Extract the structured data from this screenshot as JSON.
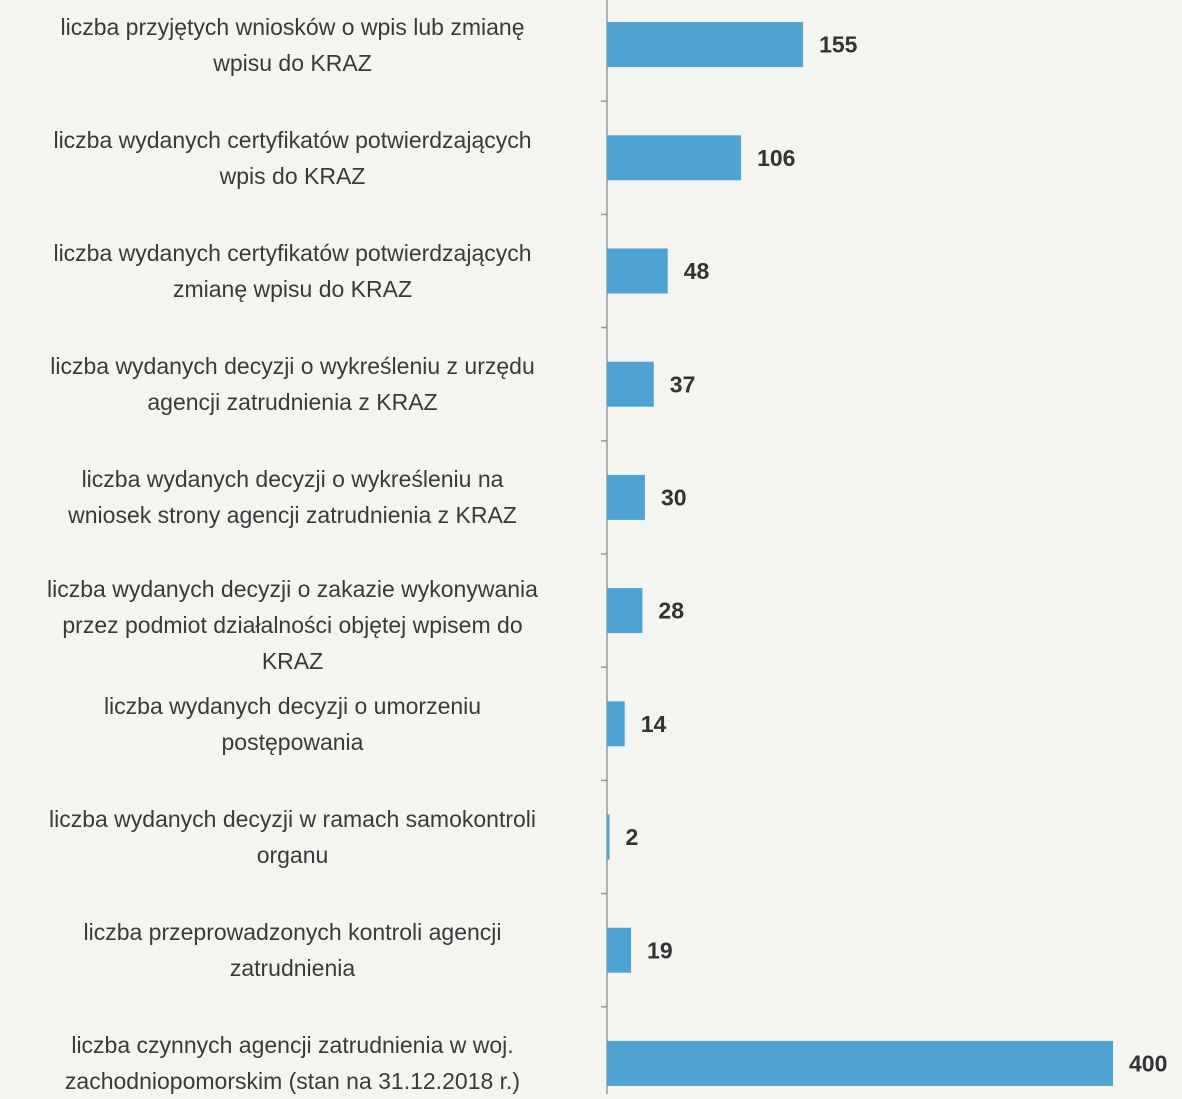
{
  "chart_data": {
    "type": "barh",
    "categories": [
      [
        "liczba przyjętych wniosków o wpis lub zmianę",
        "wpisu do KRAZ"
      ],
      [
        "liczba wydanych certyfikatów potwierdzających",
        "wpis do KRAZ"
      ],
      [
        "liczba wydanych certyfikatów potwierdzających",
        "zmianę wpisu do KRAZ"
      ],
      [
        "liczba wydanych decyzji o wykreśleniu z urzędu",
        "agencji zatrudnienia z KRAZ"
      ],
      [
        "liczba wydanych decyzji o wykreśleniu na",
        "wniosek strony agencji zatrudnienia z KRAZ"
      ],
      [
        "liczba wydanych decyzji o zakazie wykonywania",
        "przez podmiot działalności objętej wpisem do",
        "KRAZ"
      ],
      [
        "liczba wydanych decyzji o umorzeniu",
        "postępowania"
      ],
      [
        "liczba wydanych decyzji w ramach samokontroli",
        "organu"
      ],
      [
        "liczba przeprowadzonych kontroli agencji",
        "zatrudnienia"
      ],
      [
        "liczba czynnych agencji zatrudnienia w woj.",
        "zachodniopomorskim (stan na 31.12.2018 r.)"
      ]
    ],
    "values": [
      155,
      106,
      48,
      37,
      30,
      28,
      14,
      2,
      19,
      400
    ],
    "color": "#4ea3d2"
  }
}
